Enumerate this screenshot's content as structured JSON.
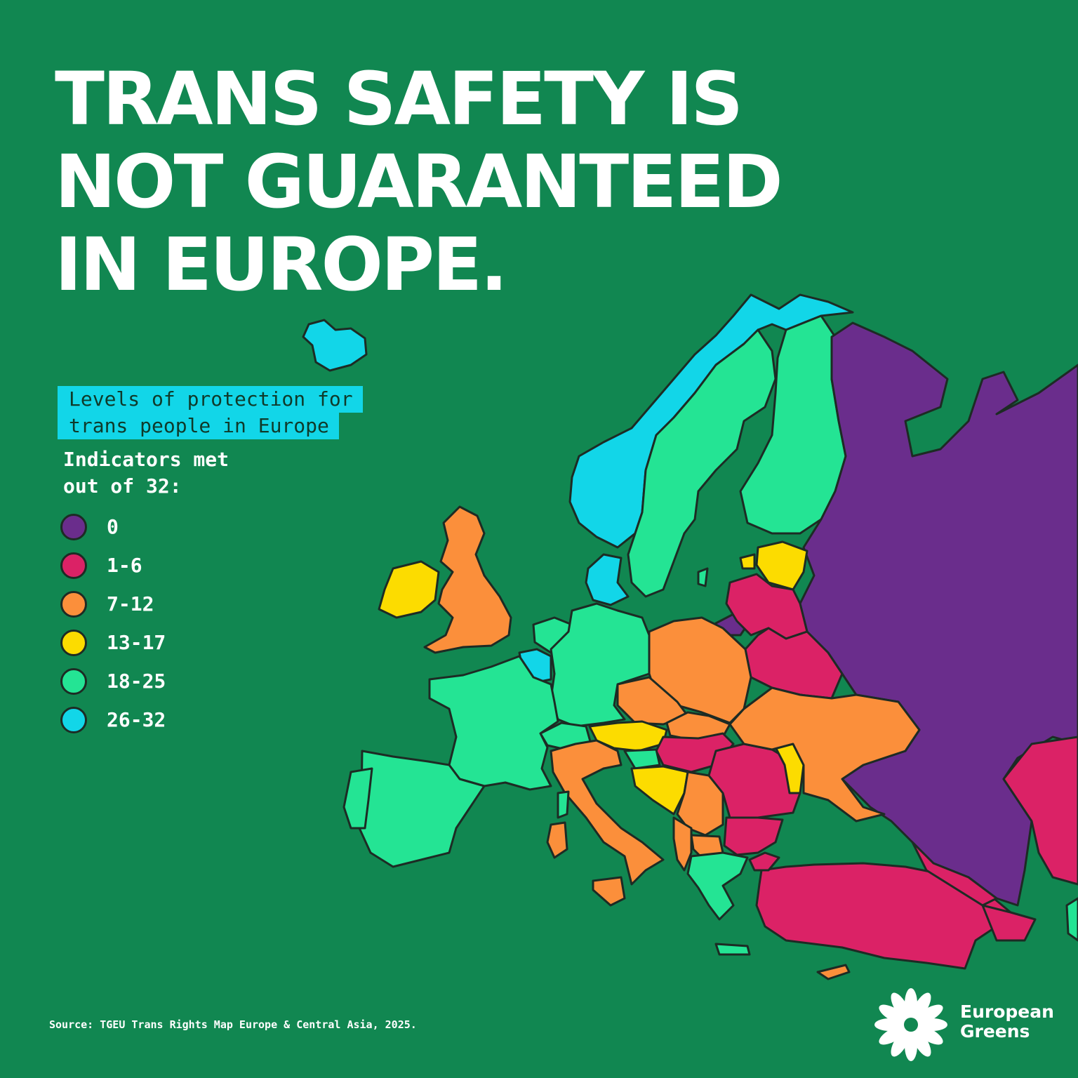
{
  "headline": {
    "line1": "TRANS SAFETY IS",
    "line2": "NOT GUARANTEED",
    "line3": "IN EUROPE."
  },
  "legend": {
    "title_line1": "Levels of protection for",
    "title_line2": "trans people in Europe",
    "subtitle_line1": "Indicators met",
    "subtitle_line2": "out of 32:",
    "items": [
      {
        "label": "0",
        "color": "#6a2d8c"
      },
      {
        "label": "1-6",
        "color": "#db2266"
      },
      {
        "label": "7-12",
        "color": "#fb8f3b"
      },
      {
        "label": "13-17",
        "color": "#fcdc00"
      },
      {
        "label": "18-25",
        "color": "#24e494"
      },
      {
        "label": "26-32",
        "color": "#12d6e8"
      }
    ]
  },
  "source": "Source: TGEU Trans Rights Map Europe & Central Asia, 2025.",
  "logo": {
    "line1": "European",
    "line2": "Greens"
  },
  "colors": {
    "background": "#118751",
    "accent_cyan": "#12d6e8"
  }
}
